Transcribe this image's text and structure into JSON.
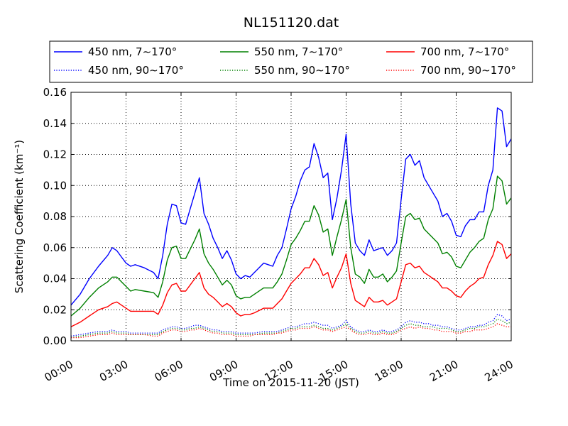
{
  "chart_data": {
    "type": "line",
    "title": "NL151120.dat",
    "xlabel": "Time on 2015-11-20 (JST)",
    "ylabel": "Scattering Coefficient (km⁻¹)",
    "xlim": [
      0,
      24
    ],
    "ylim": [
      0.0,
      0.16
    ],
    "x_ticks": [
      0,
      3,
      6,
      9,
      12,
      15,
      18,
      21,
      24
    ],
    "x_tick_labels": [
      "00:00",
      "03:00",
      "06:00",
      "09:00",
      "12:00",
      "15:00",
      "18:00",
      "21:00",
      "24:00"
    ],
    "y_ticks": [
      0.0,
      0.02,
      0.04,
      0.06,
      0.08,
      0.1,
      0.12,
      0.14,
      0.16
    ],
    "y_tick_labels": [
      "0.00",
      "0.02",
      "0.04",
      "0.06",
      "0.08",
      "0.10",
      "0.12",
      "0.14",
      "0.16"
    ],
    "grid": true,
    "legend_position": "top, above plot, 3 columns",
    "x": [
      0,
      0.5,
      1,
      1.5,
      2,
      2.25,
      2.5,
      2.75,
      3,
      3.25,
      3.5,
      4,
      4.5,
      4.75,
      5,
      5.25,
      5.5,
      5.75,
      6,
      6.25,
      6.5,
      6.75,
      7,
      7.25,
      7.5,
      7.75,
      8,
      8.25,
      8.5,
      8.75,
      9,
      9.25,
      9.5,
      9.75,
      10,
      10.5,
      11,
      11.25,
      11.5,
      11.75,
      12,
      12.25,
      12.5,
      12.75,
      13,
      13.25,
      13.5,
      13.75,
      14,
      14.25,
      14.5,
      14.75,
      15,
      15.25,
      15.5,
      15.75,
      16,
      16.25,
      16.5,
      16.75,
      17,
      17.25,
      17.5,
      17.75,
      18,
      18.25,
      18.5,
      18.75,
      19,
      19.25,
      19.5,
      19.75,
      20,
      20.25,
      20.5,
      20.75,
      21,
      21.25,
      21.5,
      21.75,
      22,
      22.25,
      22.5,
      22.75,
      23,
      23.25,
      23.5,
      23.75,
      24
    ],
    "series": [
      {
        "name": "450 nm, 7∼170°",
        "color": "#0000ff",
        "style": "solid",
        "values": [
          0.023,
          0.03,
          0.04,
          0.048,
          0.055,
          0.06,
          0.058,
          0.054,
          0.05,
          0.048,
          0.049,
          0.047,
          0.044,
          0.04,
          0.055,
          0.075,
          0.088,
          0.087,
          0.076,
          0.075,
          0.085,
          0.095,
          0.105,
          0.082,
          0.075,
          0.066,
          0.06,
          0.053,
          0.058,
          0.052,
          0.043,
          0.04,
          0.042,
          0.041,
          0.044,
          0.05,
          0.048,
          0.055,
          0.06,
          0.072,
          0.085,
          0.093,
          0.103,
          0.11,
          0.112,
          0.127,
          0.118,
          0.105,
          0.108,
          0.078,
          0.092,
          0.11,
          0.133,
          0.088,
          0.063,
          0.058,
          0.055,
          0.065,
          0.058,
          0.059,
          0.06,
          0.055,
          0.058,
          0.063,
          0.091,
          0.117,
          0.12,
          0.113,
          0.116,
          0.105,
          0.1,
          0.095,
          0.09,
          0.08,
          0.082,
          0.077,
          0.068,
          0.067,
          0.074,
          0.078,
          0.078,
          0.083,
          0.083,
          0.1,
          0.11,
          0.15,
          0.148,
          0.125,
          0.13
        ]
      },
      {
        "name": "550 nm, 7∼170°",
        "color": "#008000",
        "style": "solid",
        "values": [
          0.016,
          0.021,
          0.028,
          0.034,
          0.038,
          0.041,
          0.041,
          0.038,
          0.035,
          0.032,
          0.033,
          0.032,
          0.031,
          0.028,
          0.038,
          0.052,
          0.06,
          0.061,
          0.053,
          0.053,
          0.059,
          0.065,
          0.072,
          0.056,
          0.05,
          0.046,
          0.041,
          0.036,
          0.039,
          0.036,
          0.029,
          0.027,
          0.028,
          0.028,
          0.03,
          0.034,
          0.034,
          0.038,
          0.043,
          0.052,
          0.062,
          0.066,
          0.071,
          0.077,
          0.077,
          0.087,
          0.081,
          0.07,
          0.072,
          0.055,
          0.067,
          0.078,
          0.091,
          0.06,
          0.043,
          0.041,
          0.037,
          0.046,
          0.041,
          0.041,
          0.043,
          0.038,
          0.041,
          0.045,
          0.063,
          0.08,
          0.082,
          0.078,
          0.079,
          0.072,
          0.069,
          0.066,
          0.063,
          0.056,
          0.057,
          0.054,
          0.048,
          0.047,
          0.052,
          0.057,
          0.06,
          0.064,
          0.066,
          0.078,
          0.085,
          0.106,
          0.103,
          0.088,
          0.092
        ]
      },
      {
        "name": "700 nm, 7∼170°",
        "color": "#ff0000",
        "style": "solid",
        "values": [
          0.009,
          0.012,
          0.016,
          0.02,
          0.022,
          0.024,
          0.025,
          0.023,
          0.021,
          0.019,
          0.019,
          0.019,
          0.019,
          0.017,
          0.023,
          0.031,
          0.036,
          0.037,
          0.032,
          0.032,
          0.036,
          0.04,
          0.044,
          0.034,
          0.03,
          0.028,
          0.025,
          0.022,
          0.024,
          0.022,
          0.018,
          0.016,
          0.017,
          0.017,
          0.018,
          0.021,
          0.021,
          0.024,
          0.027,
          0.032,
          0.037,
          0.04,
          0.043,
          0.047,
          0.047,
          0.053,
          0.049,
          0.042,
          0.044,
          0.034,
          0.041,
          0.047,
          0.056,
          0.037,
          0.026,
          0.024,
          0.022,
          0.028,
          0.025,
          0.025,
          0.026,
          0.023,
          0.025,
          0.027,
          0.038,
          0.049,
          0.05,
          0.047,
          0.048,
          0.044,
          0.042,
          0.04,
          0.038,
          0.034,
          0.034,
          0.032,
          0.029,
          0.028,
          0.032,
          0.035,
          0.037,
          0.04,
          0.041,
          0.049,
          0.055,
          0.064,
          0.062,
          0.053,
          0.056
        ]
      },
      {
        "name": "450 nm, 90∼170°",
        "color": "#0000ff",
        "style": "dotted",
        "values": [
          0.003,
          0.004,
          0.005,
          0.006,
          0.006,
          0.007,
          0.006,
          0.006,
          0.006,
          0.005,
          0.005,
          0.005,
          0.005,
          0.005,
          0.007,
          0.008,
          0.009,
          0.009,
          0.008,
          0.008,
          0.009,
          0.01,
          0.01,
          0.009,
          0.008,
          0.007,
          0.007,
          0.006,
          0.006,
          0.006,
          0.005,
          0.005,
          0.005,
          0.005,
          0.005,
          0.006,
          0.006,
          0.006,
          0.007,
          0.008,
          0.009,
          0.009,
          0.01,
          0.011,
          0.011,
          0.012,
          0.011,
          0.01,
          0.01,
          0.008,
          0.009,
          0.01,
          0.013,
          0.009,
          0.007,
          0.006,
          0.006,
          0.007,
          0.006,
          0.006,
          0.007,
          0.006,
          0.006,
          0.007,
          0.009,
          0.012,
          0.013,
          0.012,
          0.012,
          0.011,
          0.011,
          0.01,
          0.01,
          0.009,
          0.009,
          0.008,
          0.007,
          0.007,
          0.008,
          0.009,
          0.009,
          0.01,
          0.01,
          0.012,
          0.013,
          0.017,
          0.016,
          0.013,
          0.014
        ]
      },
      {
        "name": "550 nm, 90∼170°",
        "color": "#008000",
        "style": "dotted",
        "values": [
          0.002,
          0.003,
          0.004,
          0.005,
          0.005,
          0.006,
          0.005,
          0.005,
          0.005,
          0.004,
          0.004,
          0.004,
          0.004,
          0.004,
          0.006,
          0.007,
          0.008,
          0.008,
          0.007,
          0.007,
          0.008,
          0.008,
          0.009,
          0.008,
          0.007,
          0.006,
          0.006,
          0.005,
          0.005,
          0.005,
          0.004,
          0.004,
          0.004,
          0.004,
          0.004,
          0.005,
          0.005,
          0.005,
          0.006,
          0.007,
          0.008,
          0.008,
          0.009,
          0.009,
          0.009,
          0.01,
          0.009,
          0.008,
          0.008,
          0.007,
          0.008,
          0.009,
          0.011,
          0.008,
          0.006,
          0.005,
          0.005,
          0.006,
          0.005,
          0.005,
          0.006,
          0.005,
          0.005,
          0.006,
          0.008,
          0.01,
          0.011,
          0.01,
          0.01,
          0.009,
          0.009,
          0.009,
          0.008,
          0.008,
          0.008,
          0.007,
          0.006,
          0.006,
          0.007,
          0.008,
          0.008,
          0.009,
          0.009,
          0.01,
          0.011,
          0.014,
          0.013,
          0.011,
          0.012
        ]
      },
      {
        "name": "700 nm, 90∼170°",
        "color": "#ff0000",
        "style": "dotted",
        "values": [
          0.002,
          0.002,
          0.003,
          0.004,
          0.004,
          0.005,
          0.004,
          0.004,
          0.004,
          0.004,
          0.004,
          0.004,
          0.003,
          0.003,
          0.005,
          0.006,
          0.007,
          0.007,
          0.006,
          0.006,
          0.007,
          0.007,
          0.008,
          0.007,
          0.006,
          0.005,
          0.005,
          0.004,
          0.004,
          0.004,
          0.003,
          0.003,
          0.003,
          0.003,
          0.004,
          0.004,
          0.004,
          0.005,
          0.005,
          0.006,
          0.007,
          0.007,
          0.008,
          0.008,
          0.008,
          0.009,
          0.008,
          0.007,
          0.007,
          0.006,
          0.007,
          0.008,
          0.009,
          0.007,
          0.005,
          0.004,
          0.004,
          0.005,
          0.004,
          0.004,
          0.005,
          0.004,
          0.004,
          0.005,
          0.007,
          0.008,
          0.009,
          0.008,
          0.009,
          0.008,
          0.008,
          0.007,
          0.007,
          0.006,
          0.006,
          0.006,
          0.005,
          0.005,
          0.006,
          0.006,
          0.007,
          0.007,
          0.007,
          0.008,
          0.009,
          0.011,
          0.01,
          0.009,
          0.009
        ]
      }
    ]
  }
}
